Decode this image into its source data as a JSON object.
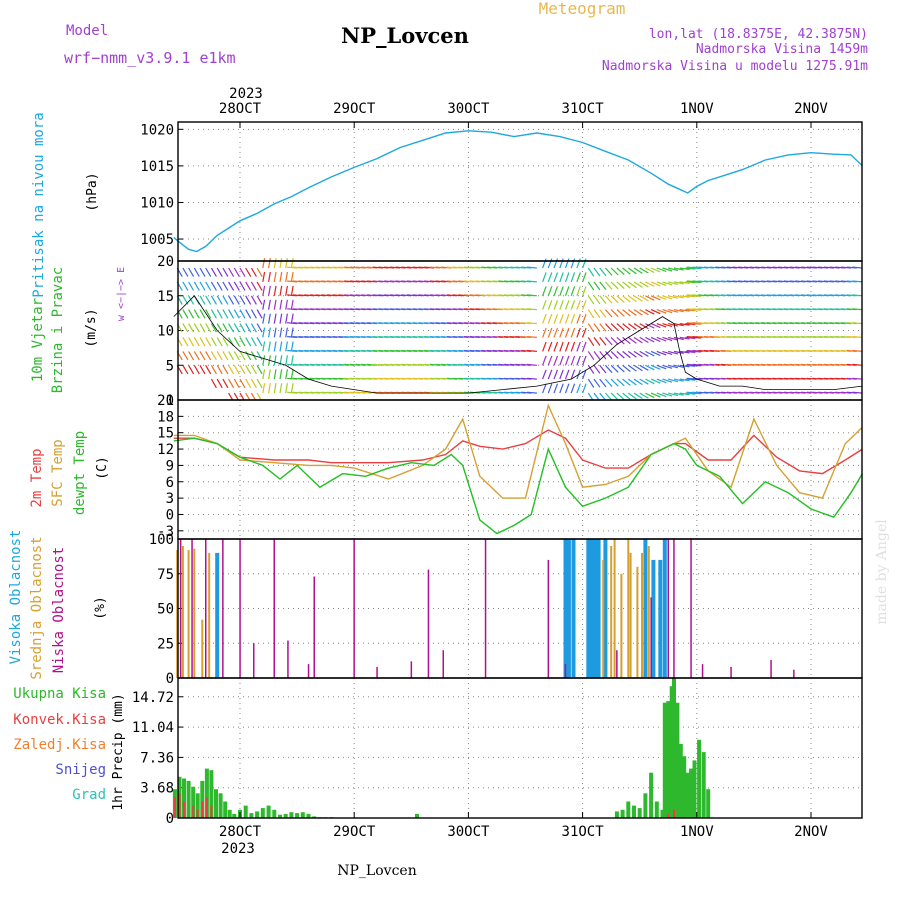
{
  "header": {
    "model_label": "Model",
    "model_value": "wrf−nmm_v3.9.1  e1km",
    "station": "NP_Lovcen",
    "title": "Meteogram",
    "lonlat": "lon,lat (18.8375E, 42.3875N)",
    "elev": "Nadmorska Visina 1459m",
    "elev_model": "Nadmorska Visina u modelu 1275.91m",
    "footer_station": "NP_Lovcen",
    "credit": "made by Angel"
  },
  "colors": {
    "pressure": "#1ea8e0",
    "temp2m": "#e84040",
    "sfc": "#d6a030",
    "dew": "#22c022",
    "high_cloud": "#1e9be0",
    "mid_cloud": "#d6a030",
    "low_cloud": "#b0108e",
    "total_precip": "#2db82d",
    "conv_precip": "#e84040",
    "purple": "#a040d0"
  },
  "time_axis": {
    "top_year": "2023",
    "bottom_year": "2023",
    "days": [
      "28OCT",
      "29OCT",
      "30OCT",
      "31OCT",
      "1NOV",
      "2NOV"
    ]
  },
  "chart_data": [
    {
      "type": "line",
      "panel": "pressure",
      "label_lines": [
        "Pritisak na nivou mora",
        "(hPa)"
      ],
      "ylim": [
        1002,
        1021
      ],
      "yticks": [
        "1005",
        "1010",
        "1015",
        "1020"
      ],
      "xlim": [
        -0.58,
        5.45
      ],
      "x_unit": "days from 28OCT 00UTC",
      "series": [
        {
          "x": [
            -0.58,
            -0.5,
            -0.45,
            -0.38,
            -0.3,
            -0.2,
            -0.1,
            0.0,
            0.15,
            0.3,
            0.45,
            0.6,
            0.8,
            1.0,
            1.2,
            1.4,
            1.6,
            1.8,
            2.0,
            2.2,
            2.4,
            2.6,
            2.8,
            3.0,
            3.2,
            3.4,
            3.6,
            3.75,
            3.85,
            3.92,
            4.0,
            4.1,
            4.2,
            4.4,
            4.6,
            4.8,
            5.0,
            5.2,
            5.35,
            5.45
          ],
          "values": [
            1005.2,
            1004.2,
            1003.6,
            1003.3,
            1004.0,
            1005.5,
            1006.5,
            1007.5,
            1008.5,
            1009.8,
            1010.8,
            1012.0,
            1013.5,
            1014.8,
            1016.0,
            1017.5,
            1018.5,
            1019.5,
            1019.8,
            1019.6,
            1019.0,
            1019.5,
            1019.0,
            1018.2,
            1017.0,
            1015.8,
            1014.0,
            1012.5,
            1011.8,
            1011.3,
            1012.2,
            1013.0,
            1013.5,
            1014.5,
            1015.8,
            1016.5,
            1016.8,
            1016.6,
            1016.5,
            1015.0
          ]
        }
      ]
    },
    {
      "type": "line",
      "panel": "wind",
      "label_lines": [
        "10m Vjetar",
        "Brzina i Pravac",
        "(m/s)"
      ],
      "compass": "w <−|−> E",
      "ylim": [
        0,
        20
      ],
      "yticks": [
        "0",
        "5",
        "10",
        "15",
        "20"
      ],
      "series": [
        {
          "name": "speed",
          "x": [
            -0.58,
            -0.4,
            -0.2,
            0.0,
            0.2,
            0.4,
            0.6,
            0.8,
            1.0,
            1.2,
            1.5,
            1.8,
            2.0,
            2.3,
            2.6,
            2.9,
            3.1,
            3.3,
            3.5,
            3.7,
            3.8,
            3.85,
            3.9,
            4.0,
            4.2,
            4.4,
            4.6,
            4.8,
            5.0,
            5.2,
            5.45
          ],
          "values": [
            12,
            15,
            10,
            7,
            6,
            5,
            3,
            2,
            1.5,
            1,
            1,
            1,
            1,
            1.5,
            2,
            3,
            5,
            8,
            10,
            12,
            11,
            7,
            4,
            3,
            2,
            2,
            1.5,
            1.5,
            1.5,
            1.5,
            2
          ]
        }
      ]
    },
    {
      "type": "line",
      "panel": "temperature",
      "label_lines": [
        "2m Temp",
        "SFC Temp",
        "dewpt Temp",
        "(C)"
      ],
      "ylim": [
        -4.5,
        21
      ],
      "yticks": [
        "-3",
        "0",
        "3",
        "6",
        "9",
        "12",
        "15",
        "18",
        "21"
      ],
      "series": [
        {
          "name": "2m Temp",
          "x": [
            -0.58,
            -0.4,
            -0.2,
            0.0,
            0.3,
            0.6,
            0.8,
            1.0,
            1.3,
            1.6,
            1.8,
            1.95,
            2.1,
            2.3,
            2.5,
            2.7,
            2.85,
            3.0,
            3.2,
            3.4,
            3.6,
            3.8,
            3.9,
            4.1,
            4.3,
            4.5,
            4.7,
            4.9,
            5.1,
            5.3,
            5.45
          ],
          "values": [
            14,
            14,
            13,
            10.5,
            10,
            10,
            9.5,
            9.5,
            9.5,
            10,
            11,
            13.5,
            12.5,
            12,
            13,
            15.5,
            14,
            10,
            8.5,
            8.5,
            11,
            13,
            13,
            10,
            10,
            14.5,
            10.5,
            8,
            7.5,
            10,
            12
          ]
        },
        {
          "name": "SFC Temp",
          "x": [
            -0.58,
            -0.4,
            -0.2,
            0.0,
            0.3,
            0.6,
            0.8,
            1.0,
            1.3,
            1.6,
            1.8,
            1.95,
            2.1,
            2.3,
            2.5,
            2.7,
            2.85,
            3.0,
            3.2,
            3.4,
            3.6,
            3.8,
            3.9,
            4.1,
            4.3,
            4.5,
            4.7,
            4.9,
            5.1,
            5.3,
            5.45
          ],
          "values": [
            14.5,
            14.5,
            13,
            10,
            9.5,
            9,
            9,
            8.5,
            6.5,
            9,
            12,
            17.5,
            7,
            3,
            3,
            20,
            13,
            5,
            5.5,
            7,
            11,
            13,
            14,
            8,
            5,
            17.5,
            9,
            4,
            3,
            13,
            16
          ]
        },
        {
          "name": "dewpt Temp",
          "x": [
            -0.58,
            -0.4,
            -0.2,
            0.0,
            0.2,
            0.35,
            0.5,
            0.7,
            0.9,
            1.1,
            1.3,
            1.5,
            1.7,
            1.85,
            1.95,
            2.1,
            2.25,
            2.4,
            2.55,
            2.7,
            2.85,
            3.0,
            3.2,
            3.4,
            3.6,
            3.8,
            3.9,
            4.0,
            4.2,
            4.4,
            4.6,
            4.8,
            5.0,
            5.2,
            5.35,
            5.45
          ],
          "values": [
            13.5,
            14,
            13,
            10.5,
            9,
            6.5,
            9,
            5,
            7.5,
            7,
            8.5,
            9.5,
            9,
            11,
            9,
            -1,
            -3.5,
            -2,
            0,
            12,
            5,
            1.5,
            3,
            5,
            11,
            13,
            12,
            9,
            7,
            2,
            6,
            4,
            1,
            -0.5,
            4,
            7.5
          ]
        }
      ]
    },
    {
      "type": "bar",
      "panel": "clouds",
      "label_lines": [
        "Visoka Oblacnost",
        "Srednja Oblacnost",
        "Niska Oblacnost",
        "(%)"
      ],
      "ylim": [
        0,
        100
      ],
      "yticks": [
        "0",
        "25",
        "50",
        "75",
        "100"
      ],
      "series": [
        {
          "name": "Visoka Oblacnost",
          "x": [
            -0.2,
            2.85,
            2.88,
            2.92,
            3.05,
            3.08,
            3.11,
            3.14,
            3.2,
            3.55,
            3.62,
            3.68,
            3.72
          ],
          "values": [
            90,
            100,
            100,
            100,
            100,
            100,
            100,
            100,
            100,
            100,
            85,
            85,
            100
          ]
        },
        {
          "name": "Srednja Oblacnost",
          "x": [
            -0.55,
            -0.5,
            -0.45,
            -0.4,
            -0.33,
            -0.27,
            3.18,
            3.25,
            3.28,
            3.34,
            3.4,
            3.42,
            3.48,
            3.52,
            3.58
          ],
          "values": [
            92,
            95,
            92,
            93,
            42,
            90,
            85,
            95,
            100,
            75,
            100,
            90,
            80,
            90,
            95
          ]
        },
        {
          "name": "Niska Oblacnost",
          "x": [
            -0.52,
            -0.42,
            -0.3,
            -0.15,
            0.0,
            0.12,
            0.3,
            0.42,
            0.6,
            0.65,
            1.0,
            1.2,
            1.5,
            1.65,
            1.78,
            2.15,
            2.7,
            2.85,
            3.3,
            3.6,
            3.75,
            3.8,
            3.95,
            4.05,
            4.3,
            4.65,
            4.85
          ],
          "values": [
            100,
            100,
            100,
            100,
            100,
            25,
            100,
            27,
            10,
            73,
            100,
            8,
            12,
            78,
            20,
            100,
            85,
            10,
            20,
            58,
            100,
            100,
            100,
            10,
            8,
            13,
            6
          ]
        }
      ]
    },
    {
      "type": "bar",
      "panel": "precip",
      "label_lines": [
        "1hr Precip (mm)"
      ],
      "legend": [
        "Ukupna Kisa",
        "Konvek.Kisa",
        "Zaledj.Kisa",
        "Snijeg",
        "Grad"
      ],
      "ylim": [
        0,
        17
      ],
      "yticks": [
        "0",
        "3.68",
        "7.36",
        "11.04",
        "14.72"
      ],
      "series": [
        {
          "name": "Ukupna Kisa",
          "x": [
            -0.57,
            -0.53,
            -0.49,
            -0.45,
            -0.41,
            -0.37,
            -0.33,
            -0.29,
            -0.25,
            -0.21,
            -0.17,
            -0.13,
            -0.09,
            -0.05,
            0.0,
            0.05,
            0.1,
            0.15,
            0.2,
            0.25,
            0.3,
            0.35,
            0.4,
            0.45,
            0.5,
            0.55,
            0.6,
            0.65,
            0.7,
            0.75,
            0.8,
            1.55,
            3.3,
            3.35,
            3.4,
            3.45,
            3.5,
            3.55,
            3.6,
            3.65,
            3.7,
            3.72,
            3.75,
            3.78,
            3.8,
            3.83,
            3.86,
            3.89,
            3.92,
            3.95,
            3.98,
            4.02,
            4.06,
            4.1
          ],
          "values": [
            3.5,
            5.0,
            4.8,
            4.5,
            3.8,
            3.0,
            4.5,
            6.0,
            5.8,
            3.5,
            3.0,
            2.0,
            1.0,
            0.5,
            1.0,
            1.5,
            0.6,
            0.8,
            1.2,
            1.5,
            1.0,
            0.4,
            0.5,
            0.7,
            0.6,
            0.7,
            0.5,
            0.2,
            0.1,
            0.1,
            0.1,
            0.5,
            0.8,
            1.0,
            2.0,
            1.5,
            1.2,
            3.0,
            5.5,
            2.0,
            1.0,
            14.0,
            14.2,
            16.0,
            17.0,
            14.0,
            9.0,
            7.5,
            5.5,
            6.0,
            7.0,
            9.5,
            8.0,
            3.5
          ]
        },
        {
          "name": "Konvek.Kisa",
          "x": [
            -0.57,
            -0.53,
            -0.49,
            -0.41,
            -0.37,
            -0.33,
            -0.29,
            -0.25,
            3.75,
            3.8
          ],
          "values": [
            2.5,
            3.0,
            2.0,
            1.5,
            1.0,
            2.0,
            2.5,
            1.5,
            0.5,
            1.0
          ]
        }
      ]
    }
  ]
}
